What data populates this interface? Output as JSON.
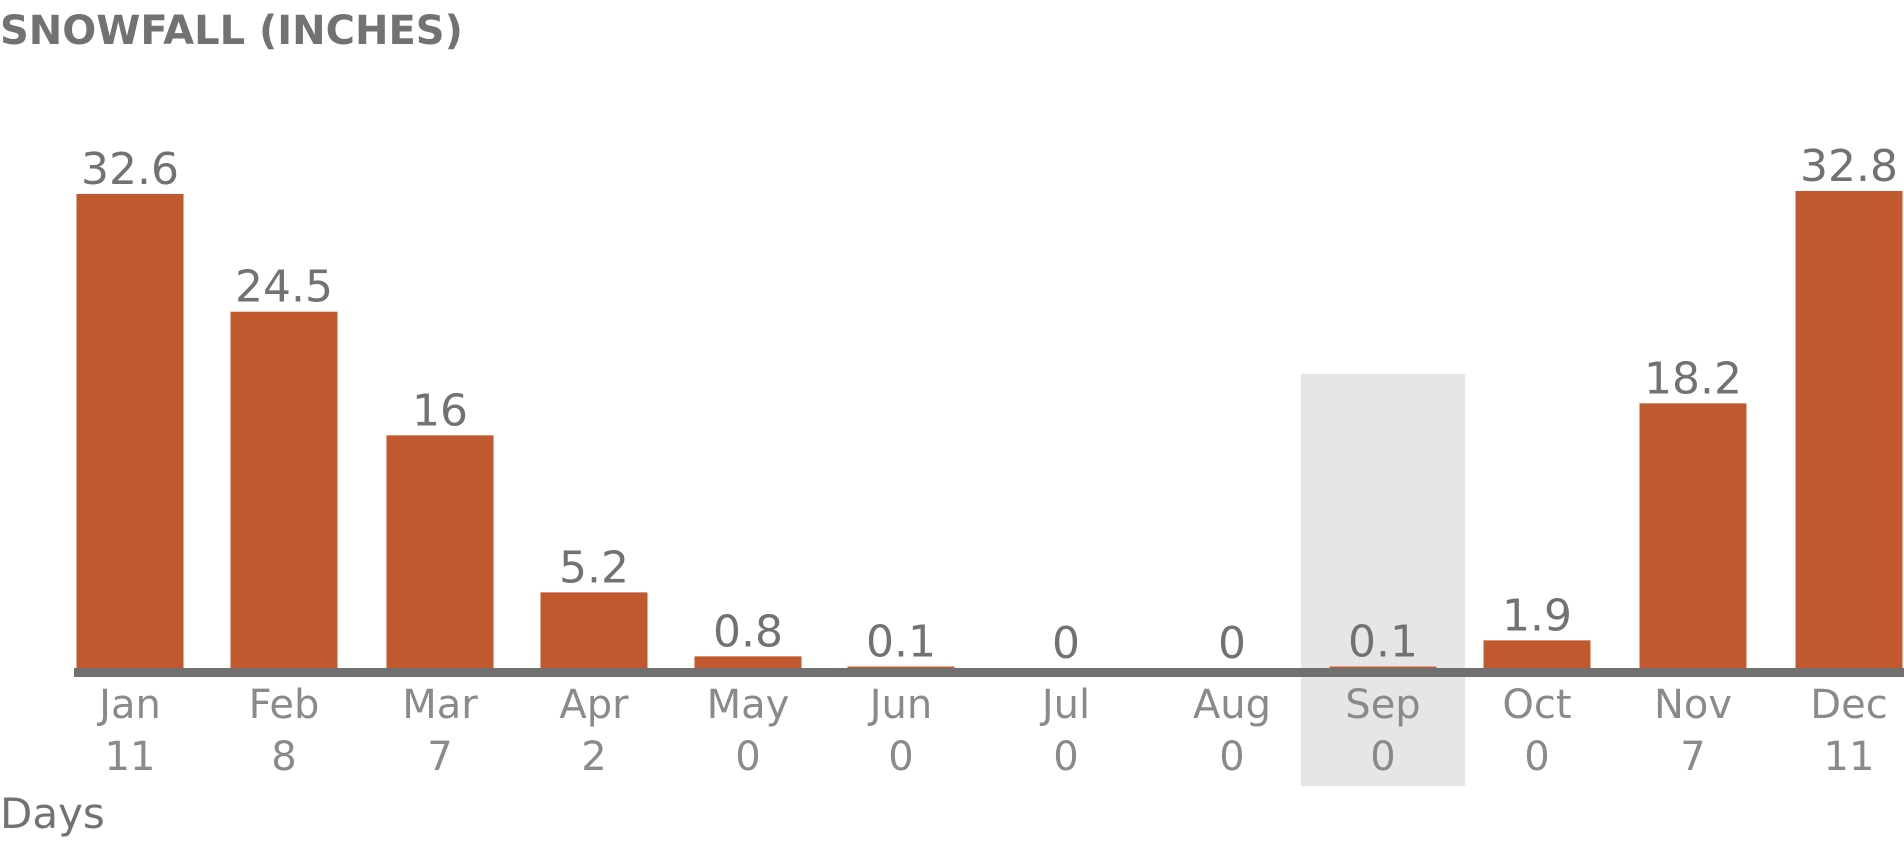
{
  "chart_data": {
    "type": "bar",
    "title": "SNOWFALL (INCHES)",
    "categories": [
      "Jan",
      "Feb",
      "Mar",
      "Apr",
      "May",
      "Jun",
      "Jul",
      "Aug",
      "Sep",
      "Oct",
      "Nov",
      "Dec"
    ],
    "values": [
      32.6,
      24.5,
      16,
      5.2,
      0.8,
      0.1,
      0,
      0,
      0.1,
      1.9,
      18.2,
      32.8
    ],
    "value_labels": [
      "32.6",
      "24.5",
      "16",
      "5.2",
      "0.8",
      "0.1",
      "0",
      "0",
      "0.1",
      "1.9",
      "18.2",
      "32.8"
    ],
    "secondary_row_label": "Days",
    "days": [
      "11",
      "8",
      "7",
      "2",
      "0",
      "0",
      "0",
      "0",
      "0",
      "0",
      "7",
      "11"
    ],
    "highlighted_category": "Sep",
    "ylim": [
      0,
      32.8
    ],
    "grid": false,
    "colors": {
      "bar": "#c05a2e",
      "baseline": "#707070",
      "highlight": "#e6e6e6",
      "text": "#727272"
    }
  }
}
